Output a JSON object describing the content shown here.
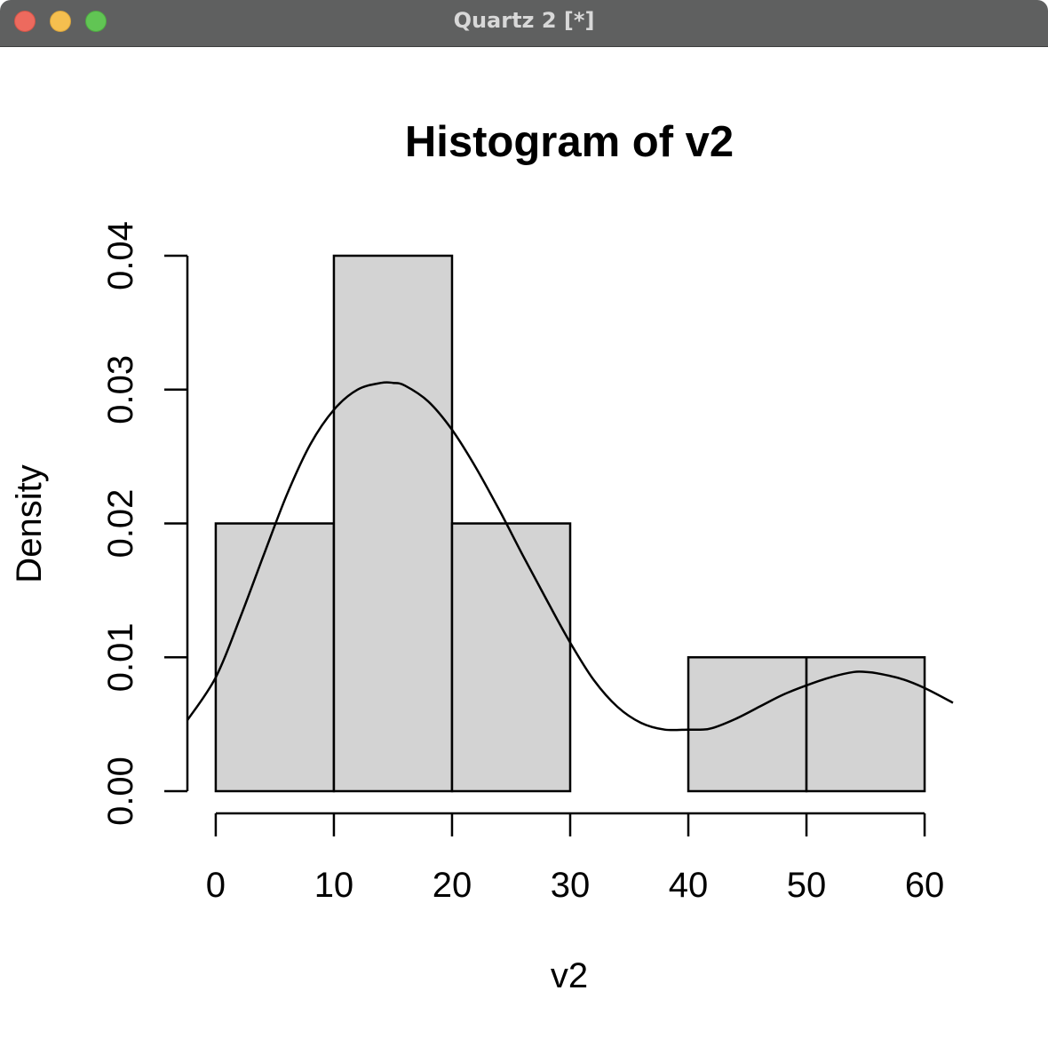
{
  "window": {
    "title": "Quartz 2 [*]"
  },
  "chart_data": {
    "type": "bar",
    "title": "Histogram of v2",
    "xlabel": "v2",
    "ylabel": "Density",
    "bins": [
      {
        "from": 0,
        "to": 10,
        "density": 0.02
      },
      {
        "from": 10,
        "to": 20,
        "density": 0.04
      },
      {
        "from": 20,
        "to": 30,
        "density": 0.02
      },
      {
        "from": 30,
        "to": 40,
        "density": 0.0
      },
      {
        "from": 40,
        "to": 50,
        "density": 0.01
      },
      {
        "from": 50,
        "to": 60,
        "density": 0.01
      }
    ],
    "x_ticks": [
      0,
      10,
      20,
      30,
      40,
      50,
      60
    ],
    "x_tick_labels": [
      "0",
      "10",
      "20",
      "30",
      "40",
      "50",
      "60"
    ],
    "y_ticks": [
      0.0,
      0.01,
      0.02,
      0.03,
      0.04
    ],
    "y_tick_labels": [
      "0.00",
      "0.01",
      "0.02",
      "0.03",
      "0.04"
    ],
    "xlim": [
      -2.4,
      62.4
    ],
    "ylim": [
      0,
      0.04
    ],
    "density_curve": {
      "x": [
        -2.4,
        0,
        2,
        4,
        6,
        8,
        10,
        12,
        14,
        15,
        16,
        18,
        20,
        22,
        24,
        26,
        28,
        30,
        32,
        34,
        36,
        38,
        40,
        41,
        42,
        44,
        46,
        48,
        50,
        52,
        54,
        55,
        56,
        58,
        60,
        62.4
      ],
      "y": [
        0.0053,
        0.0085,
        0.0128,
        0.0175,
        0.0221,
        0.0259,
        0.0285,
        0.03,
        0.0305,
        0.0305,
        0.0303,
        0.0291,
        0.027,
        0.0242,
        0.021,
        0.0176,
        0.0143,
        0.0111,
        0.0083,
        0.0063,
        0.0051,
        0.0046,
        0.0046,
        0.0046,
        0.0047,
        0.0054,
        0.0063,
        0.0072,
        0.0079,
        0.0085,
        0.0089,
        0.0089,
        0.0088,
        0.0084,
        0.0077,
        0.0066
      ]
    },
    "colors": {
      "bar_fill": "#d3d3d3",
      "stroke": "#000000",
      "background": "#ffffff"
    }
  }
}
